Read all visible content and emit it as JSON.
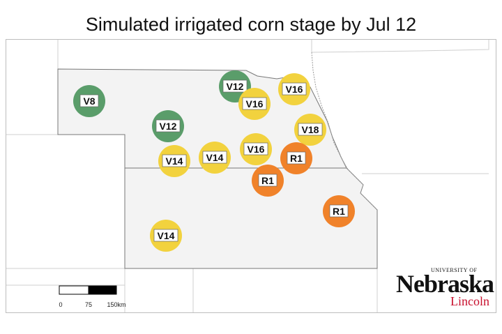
{
  "title": "Simulated irrigated corn stage by Jul 12",
  "colors": {
    "green": "#5a9d6a",
    "yellow": "#f2d23e",
    "orange": "#f0822a"
  },
  "scale_bar": {
    "labels": [
      "0",
      "75",
      "150km"
    ]
  },
  "logo": {
    "university": "UNIVERSITY OF",
    "name": "Nebraska",
    "campus": "Lincoln"
  },
  "sites": [
    {
      "stage": "V8",
      "color": "green"
    },
    {
      "stage": "V12",
      "color": "green"
    },
    {
      "stage": "V16",
      "color": "yellow"
    },
    {
      "stage": "V16",
      "color": "yellow"
    },
    {
      "stage": "V12",
      "color": "green"
    },
    {
      "stage": "V18",
      "color": "yellow"
    },
    {
      "stage": "V14",
      "color": "yellow"
    },
    {
      "stage": "V14",
      "color": "yellow"
    },
    {
      "stage": "V16",
      "color": "yellow"
    },
    {
      "stage": "R1",
      "color": "orange"
    },
    {
      "stage": "R1",
      "color": "orange"
    },
    {
      "stage": "R1",
      "color": "orange"
    },
    {
      "stage": "V14",
      "color": "yellow"
    }
  ]
}
